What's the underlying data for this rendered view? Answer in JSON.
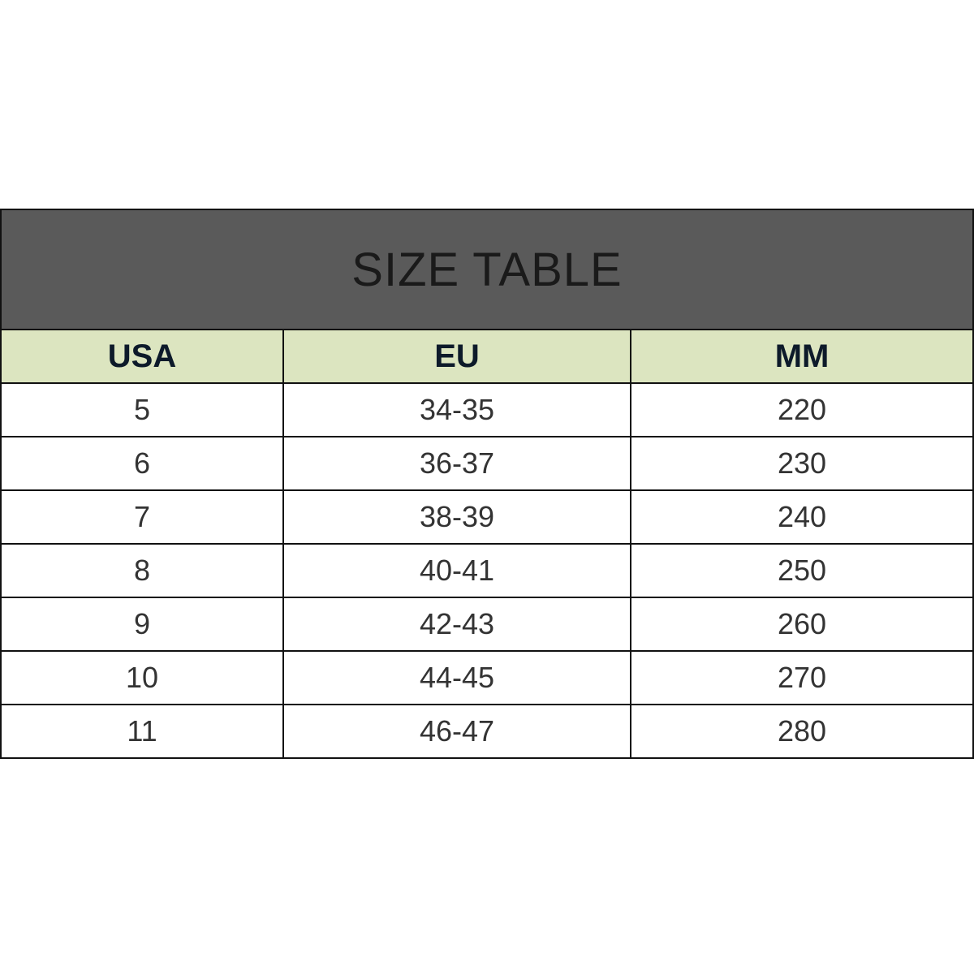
{
  "title": "SIZE TABLE",
  "headers": [
    "USA",
    "EU",
    "MM"
  ],
  "rows": [
    [
      "5",
      "34-35",
      "220"
    ],
    [
      "6",
      "36-37",
      "230"
    ],
    [
      "7",
      "38-39",
      "240"
    ],
    [
      "8",
      "40-41",
      "250"
    ],
    [
      "9",
      "42-43",
      "260"
    ],
    [
      "10",
      "44-45",
      "270"
    ],
    [
      "11",
      "46-47",
      "280"
    ]
  ],
  "colors": {
    "title_bg": "#5a5a5a",
    "header_bg": "#dce5c0",
    "border": "#111111"
  }
}
